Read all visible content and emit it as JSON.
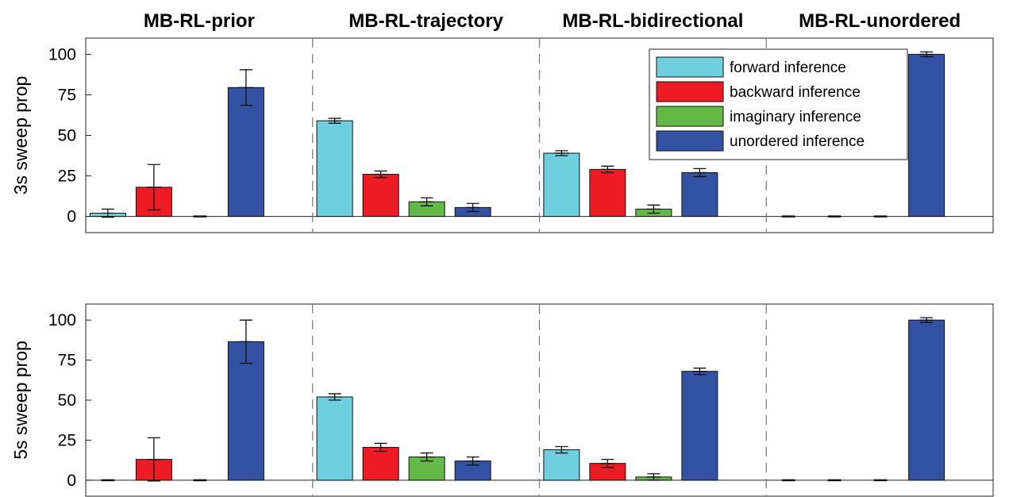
{
  "chart_data": {
    "type": "bar",
    "groups": [
      "MB-RL-prior",
      "MB-RL-trajectory",
      "MB-RL-bidirectional",
      "MB-RL-unordered"
    ],
    "legend": {
      "placement": "top-right",
      "entries": [
        "forward inference",
        "backward inference",
        "imaginary inference",
        "unordered inference"
      ]
    },
    "colors": {
      "forward inference": "#6ecfdf",
      "backward inference": "#ed1c24",
      "imaginary inference": "#62b946",
      "unordered inference": "#3452a4"
    },
    "panels": [
      {
        "ylabel": "3s sweep prop",
        "ylim": [
          -10,
          110
        ],
        "yticks": [
          0,
          25,
          50,
          75,
          100
        ],
        "series": [
          {
            "name": "forward inference",
            "values": [
              2,
              59,
              39,
              0
            ],
            "err": [
              2.5,
              1.5,
              1.5,
              0.3
            ]
          },
          {
            "name": "backward inference",
            "values": [
              18,
              26,
              29,
              0
            ],
            "err": [
              14,
              2,
              2,
              0.3
            ]
          },
          {
            "name": "imaginary inference",
            "values": [
              0,
              9,
              4.5,
              0
            ],
            "err": [
              0.3,
              2.5,
              2.5,
              0.3
            ]
          },
          {
            "name": "unordered inference",
            "values": [
              79.5,
              5.5,
              27,
              100
            ],
            "err": [
              11,
              2.5,
              2.5,
              1.5
            ]
          }
        ]
      },
      {
        "ylabel": "5s sweep prop",
        "ylim": [
          -10,
          110
        ],
        "yticks": [
          0,
          25,
          50,
          75,
          100
        ],
        "series": [
          {
            "name": "forward inference",
            "values": [
              0,
              52,
              19,
              0
            ],
            "err": [
              0.3,
              2,
              2,
              0.3
            ]
          },
          {
            "name": "backward inference",
            "values": [
              13,
              20.5,
              10.5,
              0
            ],
            "err": [
              13.5,
              2.5,
              2.5,
              0.3
            ]
          },
          {
            "name": "imaginary inference",
            "values": [
              0,
              14.5,
              2,
              0
            ],
            "err": [
              0.3,
              2.5,
              2,
              0.3
            ]
          },
          {
            "name": "unordered inference",
            "values": [
              86.5,
              12,
              68,
              100
            ],
            "err": [
              13.5,
              2.5,
              2,
              1.5
            ]
          }
        ]
      }
    ]
  }
}
